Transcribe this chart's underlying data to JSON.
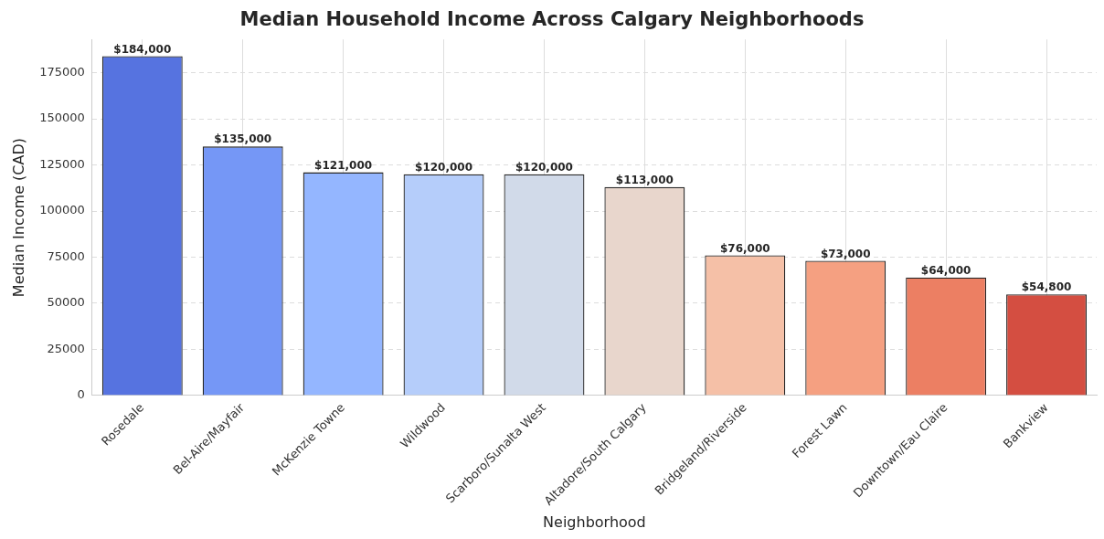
{
  "chart_data": {
    "type": "bar",
    "title": "Median Household Income Across Calgary Neighborhoods",
    "xlabel": "Neighborhood",
    "ylabel": "Median Income (CAD)",
    "categories": [
      "Rosedale",
      "Bel-Aire/Mayfair",
      "McKenzie Towne",
      "Wildwood",
      "Scarboro/Sunalta West",
      "Altadore/South Calgary",
      "Bridgeland/Riverside",
      "Forest Lawn",
      "Downtown/Eau Claire",
      "Bankview"
    ],
    "values": [
      184000,
      135000,
      121000,
      120000,
      120000,
      113000,
      76000,
      73000,
      64000,
      54800
    ],
    "value_labels": [
      "$184,000",
      "$135,000",
      "$121,000",
      "$120,000",
      "$120,000",
      "$113,000",
      "$76,000",
      "$73,000",
      "$64,000",
      "$54,800"
    ],
    "colors": [
      "#5673e0",
      "#7597f6",
      "#94b6ff",
      "#b5cdfa",
      "#d1dae9",
      "#e8d6cc",
      "#f5c0a7",
      "#f5a081",
      "#ec7f63",
      "#d44e41"
    ],
    "ylim": [
      0,
      193000
    ],
    "yticks": [
      0,
      25000,
      50000,
      75000,
      100000,
      125000,
      150000,
      175000
    ],
    "grid": true
  }
}
